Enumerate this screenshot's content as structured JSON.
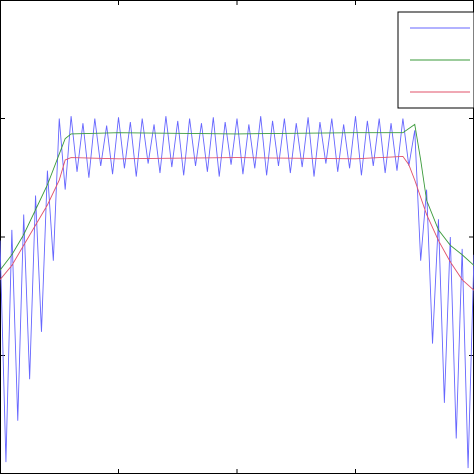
{
  "chart_data": {
    "type": "line",
    "xlim": [
      0,
      40
    ],
    "ylim": [
      0,
      40
    ],
    "xticks": [
      10,
      20,
      30
    ],
    "yticks": [
      10,
      20,
      30
    ],
    "legend": "upper right",
    "series": [
      {
        "color": "#6666ff",
        "x": [
          0,
          0.5,
          1,
          1.5,
          2,
          2.5,
          3,
          3.5,
          4,
          4.5,
          5,
          5.5,
          6,
          6.5,
          7,
          7.5,
          8,
          8.5,
          9,
          9.5,
          10,
          10.5,
          11,
          11.5,
          12,
          12.5,
          13,
          13.5,
          14,
          14.5,
          15,
          15.5,
          16,
          16.5,
          17,
          17.5,
          18,
          18.5,
          19,
          19.5,
          20,
          20.5,
          21,
          21.5,
          22,
          22.5,
          23,
          23.5,
          24,
          24.5,
          25,
          25.5,
          26,
          26.5,
          27,
          27.5,
          28,
          28.5,
          29,
          29.5,
          30,
          30.5,
          31,
          31.5,
          32,
          32.5,
          33,
          33.5,
          34,
          34.5,
          35,
          35.5,
          36,
          36.5,
          37,
          37.5,
          38,
          38.5,
          39,
          39.5,
          40
        ],
        "values": [
          19.7,
          1.0,
          20.6,
          4.5,
          21.9,
          8,
          23.5,
          12,
          25.6,
          18,
          30,
          24,
          30.2,
          25.5,
          29.6,
          25,
          30,
          26,
          29.4,
          25.3,
          30.1,
          25.8,
          29.7,
          25.1,
          30,
          26.2,
          29.5,
          25.4,
          30.2,
          25.9,
          29.8,
          25.2,
          30,
          26,
          29.6,
          25.5,
          30.1,
          25.1,
          29.7,
          26.1,
          30,
          25.3,
          29.5,
          25.8,
          30.2,
          25.2,
          29.8,
          26,
          30,
          25.4,
          29.6,
          25.9,
          30.1,
          25.1,
          29.7,
          26.2,
          30,
          25.5,
          29.5,
          25.8,
          30.2,
          25.2,
          29.8,
          26,
          30,
          25.4,
          29.6,
          25.6,
          30,
          26,
          29,
          18,
          24,
          11,
          21.5,
          6,
          20,
          3,
          19,
          0.5,
          18.5
        ]
      },
      {
        "color": "#3a9a3a",
        "x": [
          0,
          1,
          2,
          3,
          4,
          5,
          5.5,
          6,
          10,
          20,
          30,
          34,
          35,
          35.5,
          36,
          37,
          38,
          39,
          40
        ],
        "values": [
          17.2,
          18.5,
          20.2,
          22.3,
          24.4,
          27.0,
          28.3,
          28.7,
          28.8,
          28.7,
          28.8,
          28.8,
          29.5,
          26.5,
          23.1,
          20.6,
          19.3,
          18.5,
          17.6
        ]
      },
      {
        "color": "#e0506a",
        "x": [
          0,
          1,
          2,
          3,
          4,
          5,
          5.5,
          6,
          10,
          20,
          30,
          34,
          34.5,
          35,
          36,
          37,
          38,
          39,
          40
        ],
        "values": [
          16.4,
          17.6,
          19.3,
          21.0,
          22.7,
          24.8,
          26.5,
          26.7,
          26.6,
          26.7,
          26.6,
          26.8,
          26.1,
          24.8,
          21.9,
          19.7,
          17.9,
          16.4,
          15.5
        ]
      }
    ]
  }
}
